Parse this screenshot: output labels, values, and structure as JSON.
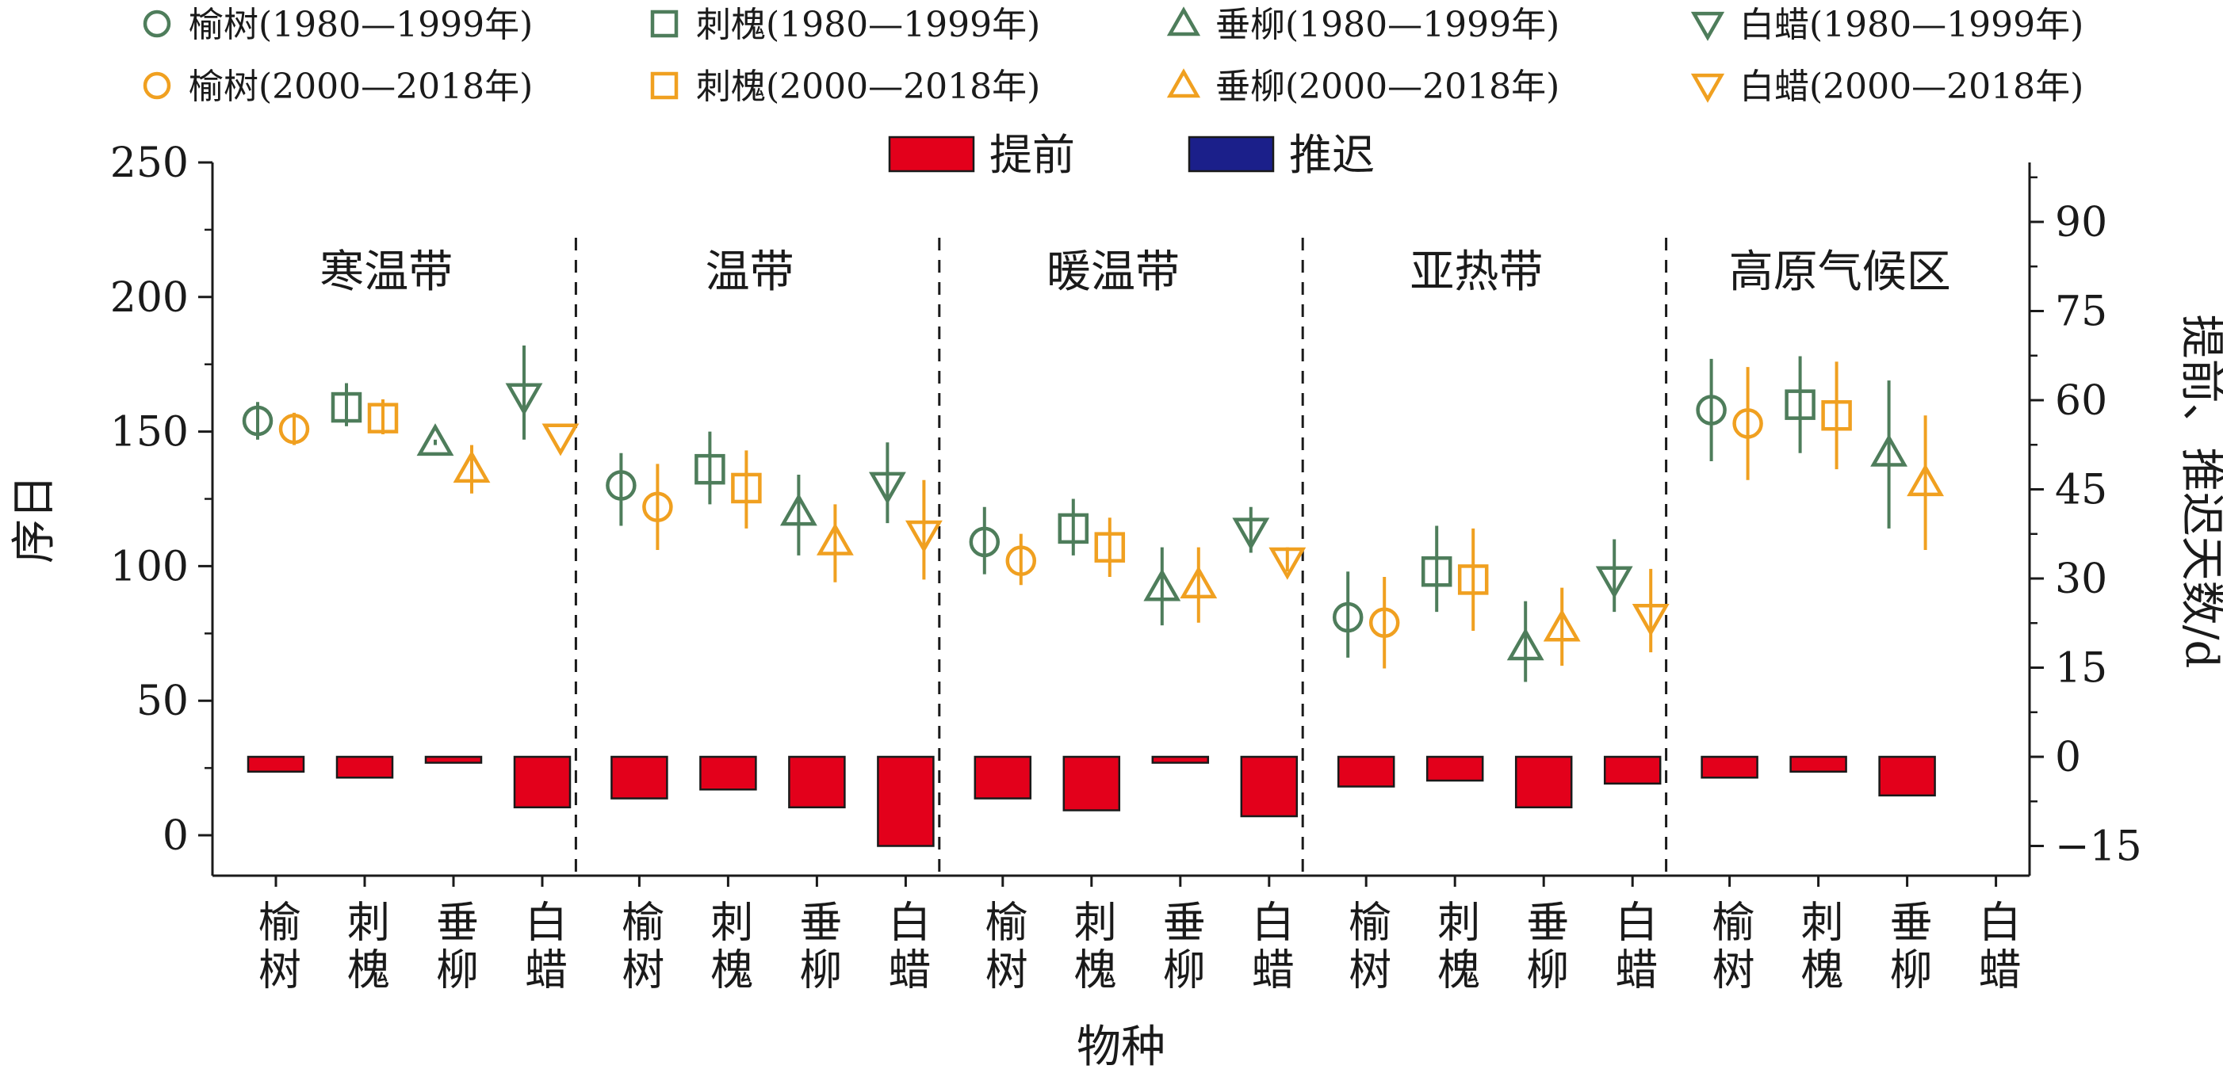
{
  "chart_data": {
    "type": "errorbar-scatter-with-bars",
    "xlabel": "物种",
    "ylabel_left": "序日",
    "ylabel_right": "提前、推迟天数/d",
    "ylim_left": [
      -15,
      250
    ],
    "yticks_left": [
      0,
      50,
      100,
      150,
      200,
      250
    ],
    "ylim_right": [
      -20,
      100
    ],
    "yticks_right": [
      -15,
      0,
      15,
      30,
      45,
      60,
      75,
      90
    ],
    "colors": {
      "period1": "#4e7d5b",
      "period2": "#f0a020",
      "advance": "#e3001b",
      "delay": "#1b1f8a"
    },
    "zones": [
      "寒温带",
      "温带",
      "暖温带",
      "亚热带",
      "高原气候区"
    ],
    "species": [
      "榆树",
      "刺槐",
      "垂柳",
      "白蜡"
    ],
    "species_markers": {
      "榆树": "circle",
      "刺槐": "square",
      "垂柳": "triangle-up",
      "白蜡": "triangle-down"
    },
    "legend_series": [
      {
        "label": "榆树(1980—1999年)",
        "marker": "circle",
        "period": "period1"
      },
      {
        "label": "刺槐(1980—1999年)",
        "marker": "square",
        "period": "period1"
      },
      {
        "label": "垂柳(1980—1999年)",
        "marker": "triangle-up",
        "period": "period1"
      },
      {
        "label": "白蜡(1980—1999年)",
        "marker": "triangle-down",
        "period": "period1"
      },
      {
        "label": "榆树(2000—2018年)",
        "marker": "circle",
        "period": "period2"
      },
      {
        "label": "刺槐(2000—2018年)",
        "marker": "square",
        "period": "period2"
      },
      {
        "label": "垂柳(2000—2018年)",
        "marker": "triangle-up",
        "period": "period2"
      },
      {
        "label": "白蜡(2000—2018年)",
        "marker": "triangle-down",
        "period": "period2"
      }
    ],
    "legend_bars": [
      {
        "label": "提前",
        "color": "advance"
      },
      {
        "label": "推迟",
        "color": "delay"
      }
    ],
    "groups": [
      {
        "zone": "寒温带",
        "items": [
          {
            "species": "榆树",
            "p1": {
              "mean": 154,
              "low": 147,
              "high": 161
            },
            "p2": {
              "mean": 151,
              "low": 145,
              "high": 157
            },
            "change": -2.5
          },
          {
            "species": "刺槐",
            "p1": {
              "mean": 159,
              "low": 152,
              "high": 168
            },
            "p2": {
              "mean": 155,
              "low": 149,
              "high": 162
            },
            "change": -3.5
          },
          {
            "species": "垂柳",
            "p1": {
              "mean": 146,
              "low": 145,
              "high": 147
            },
            "p2": {
              "mean": 136,
              "low": 127,
              "high": 145
            },
            "change": -1.0
          },
          {
            "species": "白蜡",
            "p1": {
              "mean": 163,
              "low": 147,
              "high": 182
            },
            "p2": {
              "mean": 148,
              "low": 148,
              "high": 148
            },
            "change": -8.5
          }
        ]
      },
      {
        "zone": "温带",
        "items": [
          {
            "species": "榆树",
            "p1": {
              "mean": 130,
              "low": 115,
              "high": 142
            },
            "p2": {
              "mean": 122,
              "low": 106,
              "high": 138
            },
            "change": -7.0
          },
          {
            "species": "刺槐",
            "p1": {
              "mean": 136,
              "low": 123,
              "high": 150
            },
            "p2": {
              "mean": 129,
              "low": 114,
              "high": 143
            },
            "change": -5.5
          },
          {
            "species": "垂柳",
            "p1": {
              "mean": 120,
              "low": 104,
              "high": 134
            },
            "p2": {
              "mean": 109,
              "low": 94,
              "high": 123
            },
            "change": -8.5
          },
          {
            "species": "白蜡",
            "p1": {
              "mean": 130,
              "low": 116,
              "high": 146
            },
            "p2": {
              "mean": 112,
              "low": 95,
              "high": 132
            },
            "change": -15.0
          }
        ]
      },
      {
        "zone": "暖温带",
        "items": [
          {
            "species": "榆树",
            "p1": {
              "mean": 109,
              "low": 97,
              "high": 122
            },
            "p2": {
              "mean": 102,
              "low": 93,
              "high": 112
            },
            "change": -7.0
          },
          {
            "species": "刺槐",
            "p1": {
              "mean": 114,
              "low": 104,
              "high": 125
            },
            "p2": {
              "mean": 107,
              "low": 96,
              "high": 118
            },
            "change": -9.0
          },
          {
            "species": "垂柳",
            "p1": {
              "mean": 92,
              "low": 78,
              "high": 107
            },
            "p2": {
              "mean": 93,
              "low": 79,
              "high": 107
            },
            "change": -1.0
          },
          {
            "species": "白蜡",
            "p1": {
              "mean": 113,
              "low": 105,
              "high": 122
            },
            "p2": {
              "mean": 102,
              "low": 98,
              "high": 107
            },
            "change": -10.0
          }
        ]
      },
      {
        "zone": "亚热带",
        "items": [
          {
            "species": "榆树",
            "p1": {
              "mean": 81,
              "low": 66,
              "high": 98
            },
            "p2": {
              "mean": 79,
              "low": 62,
              "high": 96
            },
            "change": -5.0
          },
          {
            "species": "刺槐",
            "p1": {
              "mean": 98,
              "low": 83,
              "high": 115
            },
            "p2": {
              "mean": 95,
              "low": 76,
              "high": 114
            },
            "change": -4.0
          },
          {
            "species": "垂柳",
            "p1": {
              "mean": 70,
              "low": 57,
              "high": 87
            },
            "p2": {
              "mean": 77,
              "low": 63,
              "high": 92
            },
            "change": -8.5
          },
          {
            "species": "白蜡",
            "p1": {
              "mean": 95,
              "low": 83,
              "high": 110
            },
            "p2": {
              "mean": 81,
              "low": 68,
              "high": 99
            },
            "change": -4.5
          }
        ]
      },
      {
        "zone": "高原气候区",
        "items": [
          {
            "species": "榆树",
            "p1": {
              "mean": 158,
              "low": 139,
              "high": 177
            },
            "p2": {
              "mean": 153,
              "low": 132,
              "high": 174
            },
            "change": -3.5
          },
          {
            "species": "刺槐",
            "p1": {
              "mean": 160,
              "low": 142,
              "high": 178
            },
            "p2": {
              "mean": 156,
              "low": 136,
              "high": 176
            },
            "change": -2.5
          },
          {
            "species": "垂柳",
            "p1": {
              "mean": 142,
              "low": 114,
              "high": 169
            },
            "p2": {
              "mean": 131,
              "low": 106,
              "high": 156
            },
            "change": -6.5
          },
          {
            "species": "白蜡",
            "p1": null,
            "p2": null,
            "change": null
          }
        ]
      }
    ]
  }
}
